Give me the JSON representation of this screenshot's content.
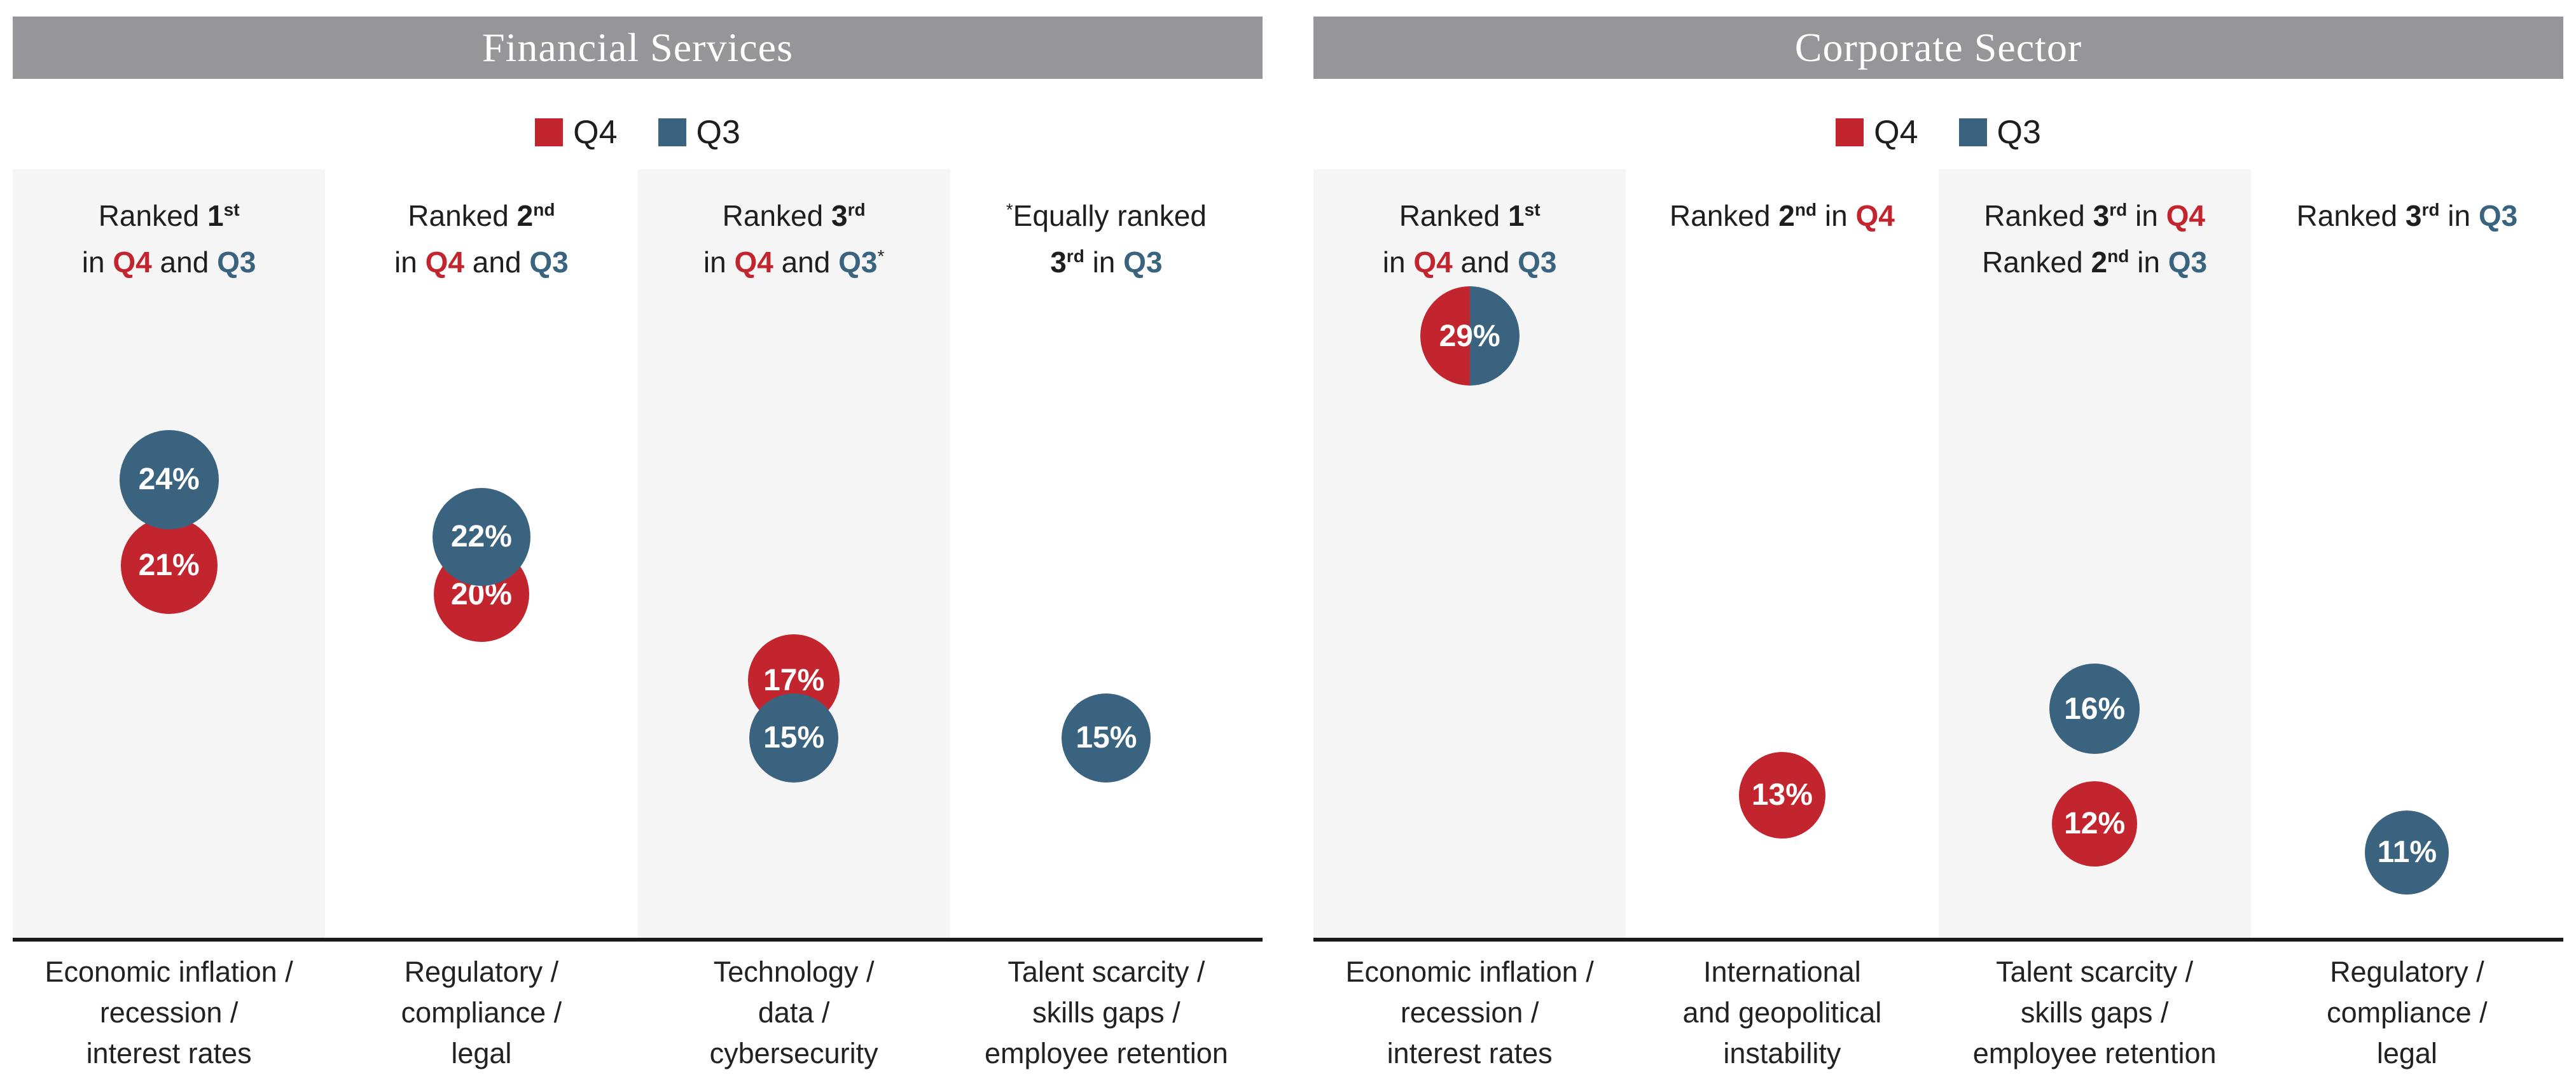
{
  "colors": {
    "q4_red": "#c2252d",
    "q3_blue": "#3a637f",
    "header_gray": "#95959a",
    "stripe_gray": "#f5f5f6",
    "axis_black": "#1a1a1a"
  },
  "panels": [
    {
      "title": "Financial Services",
      "legend": [
        {
          "label": "Q4",
          "series": "q4"
        },
        {
          "label": "Q3",
          "series": "q3"
        }
      ],
      "columns": [
        {
          "header": [
            {
              "t": "Ranked ",
              "s": "plain"
            },
            {
              "t": "1",
              "s": "bold"
            },
            {
              "t": "st",
              "s": "bold-sup"
            },
            {
              "s": "break"
            },
            {
              "t": "in ",
              "s": "plain"
            },
            {
              "t": "Q4",
              "s": "q4"
            },
            {
              "t": " and ",
              "s": "plain"
            },
            {
              "t": "Q3",
              "s": "q3"
            }
          ],
          "footer": [
            "Economic inflation /",
            "recession /",
            "interest rates"
          ],
          "bubbles": [
            {
              "series": "q4",
              "value": 21,
              "label": "21%"
            },
            {
              "series": "q3",
              "value": 24,
              "label": "24%"
            }
          ]
        },
        {
          "header": [
            {
              "t": "Ranked ",
              "s": "plain"
            },
            {
              "t": "2",
              "s": "bold"
            },
            {
              "t": "nd",
              "s": "bold-sup"
            },
            {
              "s": "break"
            },
            {
              "t": "in ",
              "s": "plain"
            },
            {
              "t": "Q4",
              "s": "q4"
            },
            {
              "t": " and ",
              "s": "plain"
            },
            {
              "t": "Q3",
              "s": "q3"
            }
          ],
          "footer": [
            "Regulatory /",
            "compliance /",
            "legal"
          ],
          "bubbles": [
            {
              "series": "q4",
              "value": 20,
              "label": "20%"
            },
            {
              "series": "q3",
              "value": 22,
              "label": "22%"
            }
          ]
        },
        {
          "header": [
            {
              "t": "Ranked ",
              "s": "plain"
            },
            {
              "t": "3",
              "s": "bold"
            },
            {
              "t": "rd",
              "s": "bold-sup"
            },
            {
              "s": "break"
            },
            {
              "t": "in ",
              "s": "plain"
            },
            {
              "t": "Q4",
              "s": "q4"
            },
            {
              "t": " and ",
              "s": "plain"
            },
            {
              "t": "Q3",
              "s": "q3"
            },
            {
              "t": "*",
              "s": "sup"
            }
          ],
          "footer": [
            "Technology /",
            "data /",
            "cybersecurity"
          ],
          "bubbles": [
            {
              "series": "q4",
              "value": 17,
              "label": "17%"
            },
            {
              "series": "q3",
              "value": 15,
              "label": "15%"
            }
          ]
        },
        {
          "header": [
            {
              "t": "*",
              "s": "sup"
            },
            {
              "t": "Equally ranked",
              "s": "plain"
            },
            {
              "s": "break"
            },
            {
              "t": "3",
              "s": "bold"
            },
            {
              "t": "rd",
              "s": "bold-sup"
            },
            {
              "t": " in ",
              "s": "plain"
            },
            {
              "t": "Q3",
              "s": "q3"
            }
          ],
          "footer": [
            "Talent scarcity /",
            "skills gaps /",
            "employee retention"
          ],
          "bubbles": [
            {
              "series": "q3",
              "value": 15,
              "label": "15%"
            }
          ]
        }
      ]
    },
    {
      "title": "Corporate Sector",
      "legend": [
        {
          "label": "Q4",
          "series": "q4"
        },
        {
          "label": "Q3",
          "series": "q3"
        }
      ],
      "columns": [
        {
          "header": [
            {
              "t": "Ranked ",
              "s": "plain"
            },
            {
              "t": "1",
              "s": "bold"
            },
            {
              "t": "st",
              "s": "bold-sup"
            },
            {
              "s": "break"
            },
            {
              "t": "in ",
              "s": "plain"
            },
            {
              "t": "Q4",
              "s": "q4"
            },
            {
              "t": " and ",
              "s": "plain"
            },
            {
              "t": "Q3",
              "s": "q3"
            }
          ],
          "footer": [
            "Economic inflation /",
            "recession /",
            "interest rates"
          ],
          "bubbles": [
            {
              "series": "both",
              "value": 29,
              "label": "29%"
            }
          ]
        },
        {
          "header": [
            {
              "t": "Ranked ",
              "s": "plain"
            },
            {
              "t": "2",
              "s": "bold"
            },
            {
              "t": "nd",
              "s": "bold-sup"
            },
            {
              "t": " in ",
              "s": "plain"
            },
            {
              "t": "Q4",
              "s": "q4"
            }
          ],
          "footer": [
            "International",
            "and geopolitical",
            "instability"
          ],
          "bubbles": [
            {
              "series": "q4",
              "value": 13,
              "label": "13%"
            }
          ]
        },
        {
          "header": [
            {
              "t": "Ranked ",
              "s": "plain"
            },
            {
              "t": "3",
              "s": "bold"
            },
            {
              "t": "rd",
              "s": "bold-sup"
            },
            {
              "t": " in ",
              "s": "plain"
            },
            {
              "t": "Q4",
              "s": "q4"
            },
            {
              "s": "break"
            },
            {
              "t": "Ranked ",
              "s": "plain"
            },
            {
              "t": "2",
              "s": "bold"
            },
            {
              "t": "nd",
              "s": "bold-sup"
            },
            {
              "t": " in ",
              "s": "plain"
            },
            {
              "t": "Q3",
              "s": "q3"
            }
          ],
          "footer": [
            "Talent scarcity /",
            "skills gaps /",
            "employee retention"
          ],
          "bubbles": [
            {
              "series": "q3",
              "value": 16,
              "label": "16%"
            },
            {
              "series": "q4",
              "value": 12,
              "label": "12%"
            }
          ]
        },
        {
          "header": [
            {
              "t": "Ranked ",
              "s": "plain"
            },
            {
              "t": "3",
              "s": "bold"
            },
            {
              "t": "rd",
              "s": "bold-sup"
            },
            {
              "t": " in ",
              "s": "plain"
            },
            {
              "t": "Q3",
              "s": "q3"
            }
          ],
          "footer": [
            "Regulatory /",
            "compliance /",
            "legal"
          ],
          "bubbles": [
            {
              "series": "q3",
              "value": 11,
              "label": "11%"
            }
          ]
        }
      ]
    }
  ],
  "chart_data": {
    "type": "bubble",
    "legend": [
      "Q4",
      "Q3"
    ],
    "legend_position": "top",
    "panels": [
      {
        "title": "Financial Services",
        "categories": [
          "Economic inflation / recession / interest rates",
          "Regulatory / compliance / legal",
          "Technology / data / cybersecurity",
          "Talent scarcity / skills gaps / employee retention"
        ],
        "series": [
          {
            "name": "Q4",
            "values": [
              21,
              20,
              17,
              null
            ]
          },
          {
            "name": "Q3",
            "values": [
              24,
              22,
              15,
              15
            ]
          }
        ],
        "annotations": [
          "Ranked 1st in Q4 and Q3",
          "Ranked 2nd in Q4 and Q3",
          "Ranked 3rd in Q4 and Q3*",
          "*Equally ranked 3rd in Q3"
        ]
      },
      {
        "title": "Corporate Sector",
        "categories": [
          "Economic inflation / recession / interest rates",
          "International and geopolitical instability",
          "Talent scarcity / skills gaps / employee retention",
          "Regulatory / compliance / legal"
        ],
        "series": [
          {
            "name": "Q4",
            "values": [
              29,
              13,
              12,
              null
            ]
          },
          {
            "name": "Q3",
            "values": [
              29,
              null,
              16,
              11
            ]
          }
        ],
        "annotations": [
          "Ranked 1st in Q4 and Q3",
          "Ranked 2nd in Q4",
          "Ranked 3rd in Q4 / Ranked 2nd in Q3",
          "Ranked 3rd in Q3"
        ]
      }
    ]
  }
}
